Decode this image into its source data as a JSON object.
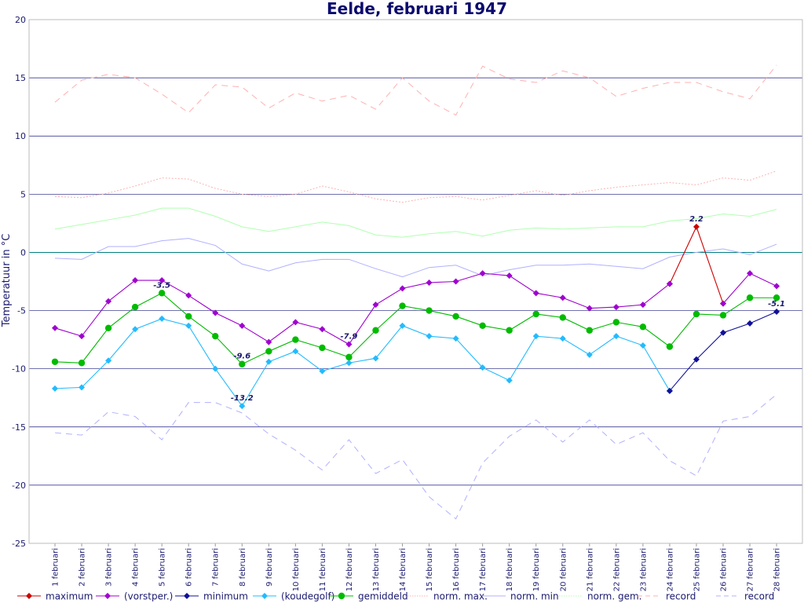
{
  "chart_data": {
    "type": "line",
    "title": "Eelde, februari 1947",
    "ylabel": "Temperatuur in °C",
    "ylim": [
      -25,
      20
    ],
    "yticks": [
      20,
      15,
      10,
      5,
      0,
      -5,
      -10,
      -15,
      -20,
      -25
    ],
    "categories": [
      "1 februari",
      "2 februari",
      "3 februari",
      "4 februari",
      "5 februari",
      "6 februari",
      "7 februari",
      "8 februari",
      "9 februari",
      "10 februari",
      "11 februari",
      "12 februari",
      "13 februari",
      "14 februari",
      "15 februari",
      "16 februari",
      "17 februari",
      "18 februari",
      "19 februari",
      "20 februari",
      "21 februari",
      "22 februari",
      "23 februari",
      "24 februari",
      "25 februari",
      "26 februari",
      "27 februari",
      "28 februari"
    ],
    "series": [
      {
        "name": "record",
        "style": "dashed",
        "color": "#ffb0b0",
        "marker": "none",
        "values": [
          12.9,
          14.8,
          15.3,
          15.0,
          13.6,
          12.0,
          14.4,
          14.2,
          12.4,
          13.7,
          13.0,
          13.5,
          12.3,
          15.0,
          13.0,
          11.8,
          16.0,
          14.9,
          14.6,
          15.6,
          15.0,
          13.4,
          14.1,
          14.6,
          14.6,
          13.8,
          13.2,
          16.1
        ]
      },
      {
        "name": "norm. max.",
        "style": "dotted",
        "color": "#ffb0b0",
        "marker": "none",
        "values": [
          4.8,
          4.7,
          5.1,
          5.7,
          6.4,
          6.3,
          5.5,
          5.0,
          4.8,
          5.0,
          5.7,
          5.2,
          4.6,
          4.3,
          4.7,
          4.8,
          4.5,
          4.9,
          5.3,
          4.9,
          5.3,
          5.6,
          5.8,
          6.0,
          5.8,
          6.4,
          6.2,
          7.0
        ]
      },
      {
        "name": "norm. gem.",
        "style": "solid",
        "color": "#b0ffb0",
        "marker": "none",
        "values": [
          2.0,
          2.4,
          2.8,
          3.2,
          3.8,
          3.8,
          3.1,
          2.2,
          1.8,
          2.2,
          2.6,
          2.3,
          1.5,
          1.3,
          1.6,
          1.8,
          1.4,
          1.9,
          2.1,
          2.0,
          2.1,
          2.2,
          2.2,
          2.7,
          2.9,
          3.3,
          3.1,
          3.7
        ]
      },
      {
        "name": "norm. min",
        "style": "solid",
        "color": "#b0b0ff",
        "marker": "none",
        "values": [
          -0.5,
          -0.6,
          0.5,
          0.5,
          1.0,
          1.2,
          0.6,
          -1.0,
          -1.6,
          -0.9,
          -0.6,
          -0.6,
          -1.4,
          -2.1,
          -1.3,
          -1.1,
          -2.0,
          -1.5,
          -1.1,
          -1.1,
          -1.0,
          -1.2,
          -1.4,
          -0.4,
          0.0,
          0.3,
          -0.2,
          0.7
        ]
      },
      {
        "name": "record",
        "style": "dashed",
        "color": "#b0b0ff",
        "marker": "none",
        "values": [
          -15.5,
          -15.7,
          -13.7,
          -14.1,
          -16.1,
          -12.9,
          -12.9,
          -13.8,
          -15.6,
          -17.0,
          -18.7,
          -16.1,
          -19.0,
          -17.8,
          -21.0,
          -22.9,
          -18.1,
          -15.8,
          -14.4,
          -16.3,
          -14.4,
          -16.5,
          -15.5,
          -17.9,
          -19.2,
          -14.5,
          -14.1,
          -12.2
        ]
      },
      {
        "name": "(koudegolf)",
        "style": "solid",
        "color": "#22bbff",
        "marker": "diamond",
        "values": [
          -11.7,
          -11.6,
          -9.3,
          -6.6,
          -5.7,
          -6.3,
          -10.0,
          -13.2,
          -9.4,
          -8.5,
          -10.2,
          -9.5,
          -9.1,
          -6.3,
          -7.2,
          -7.4,
          -9.9,
          -11.0,
          -7.2,
          -7.4,
          -8.8,
          -7.2,
          -8.0,
          -11.9,
          null,
          null,
          null,
          null
        ]
      },
      {
        "name": "minimum",
        "style": "solid",
        "color": "#10109a",
        "marker": "diamond",
        "values": [
          null,
          null,
          null,
          null,
          null,
          null,
          null,
          null,
          null,
          null,
          null,
          null,
          null,
          null,
          null,
          null,
          null,
          null,
          null,
          null,
          null,
          null,
          null,
          -11.9,
          -9.2,
          -6.9,
          -6.1,
          -5.1
        ]
      },
      {
        "name": "gemiddeld",
        "style": "solid",
        "color": "#00bb00",
        "marker": "circle",
        "values": [
          -9.4,
          -9.5,
          -6.5,
          -4.7,
          -3.5,
          -5.5,
          -7.2,
          -9.6,
          -8.5,
          -7.5,
          -8.2,
          -9.0,
          -6.7,
          -4.6,
          -5.0,
          -5.5,
          -6.3,
          -6.7,
          -5.3,
          -5.6,
          -6.7,
          -6.0,
          -6.4,
          -8.1,
          -5.3,
          -5.4,
          -3.9,
          -3.9
        ]
      },
      {
        "name": "maximum",
        "style": "solid",
        "color": "#cc0000",
        "marker": "diamond",
        "values": [
          null,
          null,
          null,
          null,
          null,
          null,
          null,
          null,
          null,
          null,
          null,
          null,
          null,
          null,
          null,
          null,
          null,
          null,
          null,
          null,
          null,
          null,
          null,
          -2.7,
          2.2,
          -4.4,
          null,
          null
        ]
      },
      {
        "name": "(vorstper.)",
        "style": "solid",
        "color": "#a000d0",
        "marker": "diamond",
        "values": [
          -6.5,
          -7.2,
          -4.2,
          -2.4,
          -2.4,
          -3.7,
          -5.2,
          -6.3,
          -7.7,
          -6.0,
          -6.6,
          -7.9,
          -4.5,
          -3.1,
          -2.6,
          -2.5,
          -1.8,
          -2.0,
          -3.5,
          -3.9,
          -4.8,
          -4.7,
          -4.5,
          -2.7,
          null,
          -4.4,
          -1.8,
          -2.9
        ]
      }
    ],
    "annotations": [
      {
        "text": "-3.5",
        "x": "5 februari",
        "y": -3.5
      },
      {
        "text": "-9.6",
        "x": "8 februari",
        "y": -9.6
      },
      {
        "text": "-13.2",
        "x": "8 februari",
        "y": -13.2
      },
      {
        "text": "-7.9",
        "x": "12 februari",
        "y": -7.9
      },
      {
        "text": "2.2",
        "x": "25 februari",
        "y": 2.2
      },
      {
        "text": "-5.1",
        "x": "28 februari",
        "y": -5.1
      }
    ],
    "legend": {
      "placement": "bottom",
      "items": [
        {
          "label": "maximum",
          "color": "#cc0000",
          "style": "solid",
          "marker": "diamond"
        },
        {
          "label": "(vorstper.)",
          "color": "#a000d0",
          "style": "solid",
          "marker": "diamond"
        },
        {
          "label": "minimum",
          "color": "#10109a",
          "style": "solid",
          "marker": "diamond"
        },
        {
          "label": "(koudegolf)",
          "color": "#22bbff",
          "style": "solid",
          "marker": "diamond"
        },
        {
          "label": "gemiddeld",
          "color": "#00bb00",
          "style": "solid",
          "marker": "circle"
        },
        {
          "label": "norm. max.",
          "color": "#ffb0b0",
          "style": "dotted",
          "marker": "none"
        },
        {
          "label": "norm. min",
          "color": "#b0b0ff",
          "style": "solid",
          "marker": "none"
        },
        {
          "label": "norm. gem.",
          "color": "#b0ffb0",
          "style": "dotted",
          "marker": "none"
        },
        {
          "label": "record",
          "color": "#ffb0b0",
          "style": "dashed",
          "marker": "none"
        },
        {
          "label": "record",
          "color": "#b0b0ff",
          "style": "dashed",
          "marker": "none"
        }
      ]
    },
    "grid": true,
    "zero_line_color": "#008080",
    "grid_color": "#1a1a80"
  }
}
